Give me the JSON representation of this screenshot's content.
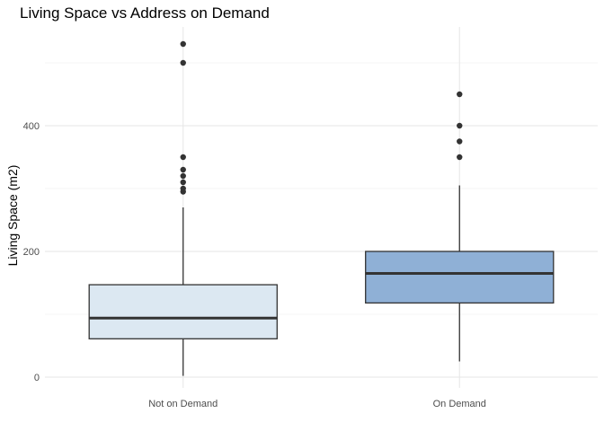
{
  "chart_data": {
    "type": "boxplot",
    "title": "Living Space vs Address on Demand",
    "xlabel": "",
    "ylabel": "Living Space (m2)",
    "categories": [
      "Not on Demand",
      "On Demand"
    ],
    "yticks": [
      0,
      200,
      400
    ],
    "ylim": [
      -2,
      555
    ],
    "grid": true,
    "legend": "none",
    "boxes": [
      {
        "category": "Not on Demand",
        "whisker_low": 2,
        "q1": 61,
        "median": 94,
        "q3": 147,
        "whisker_high": 270,
        "fill": "#dce8f2",
        "outliers": [
          295,
          300,
          310,
          320,
          330,
          350,
          500,
          530
        ]
      },
      {
        "category": "On Demand",
        "whisker_low": 25,
        "q1": 118,
        "median": 165,
        "q3": 200,
        "whisker_high": 305,
        "fill": "#8fb0d6",
        "outliers": [
          350,
          375,
          400,
          450
        ]
      }
    ]
  }
}
